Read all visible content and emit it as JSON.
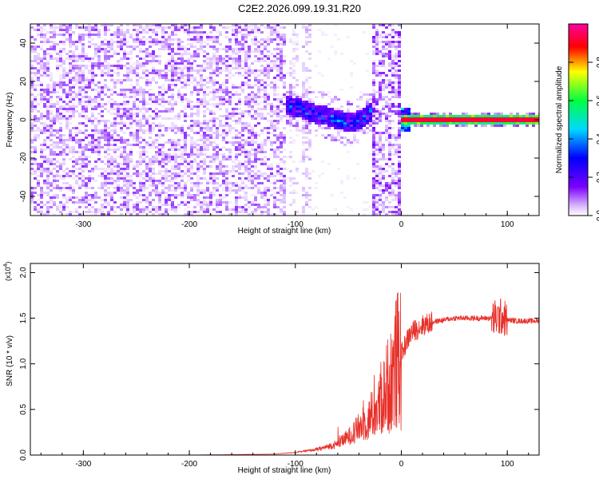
{
  "title": "C2E2.2026.099.19.31.R20",
  "chart_data": [
    {
      "type": "heatmap",
      "xlabel": "Height of straight line (km)",
      "ylabel": "Frequency (Hz)",
      "xlim": [
        -350,
        130
      ],
      "ylim": [
        -50,
        50
      ],
      "xticks": [
        -300,
        -200,
        -100,
        0,
        100
      ],
      "yticks": [
        -40,
        -20,
        0,
        20,
        40
      ],
      "xtick_labels": [
        "-300",
        "-200",
        "-100",
        "0",
        "100"
      ],
      "ytick_labels": [
        "-40",
        "-20",
        "0",
        "20",
        "40"
      ],
      "colorbar": {
        "label": "Normalized spectral amplitude",
        "range": [
          0,
          1
        ],
        "ticks": [
          0.0,
          0.2,
          0.4,
          0.6,
          0.8
        ],
        "tick_labels": [
          "0.0",
          "0.2",
          "0.4",
          "0.6",
          "0.8"
        ],
        "colors": [
          "#ffffff",
          "#d9b8ff",
          "#7a00ff",
          "#0000ff",
          "#00d8ff",
          "#00ff40",
          "#ffff00",
          "#ff0000",
          "#ff00a0"
        ]
      },
      "regions": [
        {
          "name": "noise",
          "x": [
            -350,
            -110
          ],
          "amplitude": 0.2
        },
        {
          "name": "sparse-noise",
          "x": [
            -110,
            -27
          ],
          "amplitude": 0.12
        },
        {
          "name": "dense-noise",
          "x": [
            -27,
            0
          ],
          "amplitude": 0.2
        },
        {
          "name": "signal-band",
          "x": [
            -113,
            -27
          ],
          "center_hz": [
            7,
            7,
            5,
            3,
            2,
            0,
            -2,
            0,
            5
          ],
          "amplitude": 0.45
        },
        {
          "name": "carrier-line",
          "x": [
            0,
            130
          ],
          "center_hz": 0,
          "amplitude": 0.95
        }
      ]
    },
    {
      "type": "line",
      "xlabel": "Height of straight line (km)",
      "ylabel": "SNR (10 * v/v)",
      "multiplier": "(x10^4)",
      "multiplier_base": "(x10",
      "multiplier_exp": "4",
      "multiplier_close": ")",
      "xlim": [
        -350,
        130
      ],
      "ylim": [
        0,
        2.1
      ],
      "xticks": [
        -300,
        -200,
        -100,
        0,
        100
      ],
      "yticks": [
        0.0,
        0.5,
        1.0,
        1.5,
        2.0
      ],
      "xtick_labels": [
        "-300",
        "-200",
        "-100",
        "0",
        "100"
      ],
      "ytick_labels": [
        "0.0",
        "0.5",
        "1.0",
        "1.5",
        "2.0"
      ],
      "series": [
        {
          "name": "SNR",
          "color": "#e8302a",
          "x": [
            -350,
            -300,
            -200,
            -120,
            -100,
            -80,
            -60,
            -50,
            -40,
            -30,
            -20,
            -15,
            -10,
            -5,
            0,
            5,
            10,
            20,
            30,
            50,
            70,
            80,
            90,
            95,
            100,
            110,
            120,
            130
          ],
          "y": [
            0.0,
            0.0,
            0.0,
            0.01,
            0.03,
            0.06,
            0.12,
            0.2,
            0.3,
            0.4,
            0.55,
            0.7,
            0.85,
            1.0,
            1.1,
            1.25,
            1.35,
            1.42,
            1.46,
            1.5,
            1.5,
            1.5,
            1.5,
            1.52,
            1.48,
            1.47,
            1.47,
            1.47
          ]
        }
      ]
    }
  ]
}
